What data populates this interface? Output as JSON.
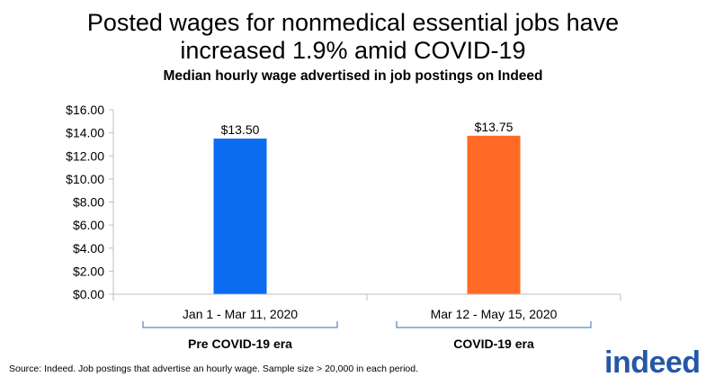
{
  "chart_data": {
    "type": "bar",
    "title_lines": [
      "Posted wages for nonmedical essential jobs have",
      "increased 1.9% amid COVID-19"
    ],
    "subtitle": "Median hourly wage advertised in job postings on Indeed",
    "categories": [
      "Jan 1 - Mar 11, 2020",
      "Mar 12 - May 15, 2020"
    ],
    "values": [
      13.5,
      13.75
    ],
    "data_labels": [
      "$13.50",
      "$13.75"
    ],
    "bar_colors": [
      "#0b6cf2",
      "#ff6a26"
    ],
    "ylim": [
      0,
      16
    ],
    "y_ticks": [
      0,
      2,
      4,
      6,
      8,
      10,
      12,
      14,
      16
    ],
    "y_tick_labels": [
      "$0.00",
      "$2.00",
      "$4.00",
      "$6.00",
      "$8.00",
      "$10.00",
      "$12.00",
      "$14.00",
      "$16.00"
    ],
    "group_labels": [
      "Pre COVID-19 era",
      "COVID-19 era"
    ],
    "grid": false,
    "legend": "none"
  },
  "source_note": "Source: Indeed. Job postings that advertise an hourly wage. Sample size > 20,000 in each period.",
  "logo_text": "indeed",
  "colors": {
    "logo": "#2557a7",
    "bracket": "#2f6eb5",
    "axis": "#bfbfbf"
  }
}
